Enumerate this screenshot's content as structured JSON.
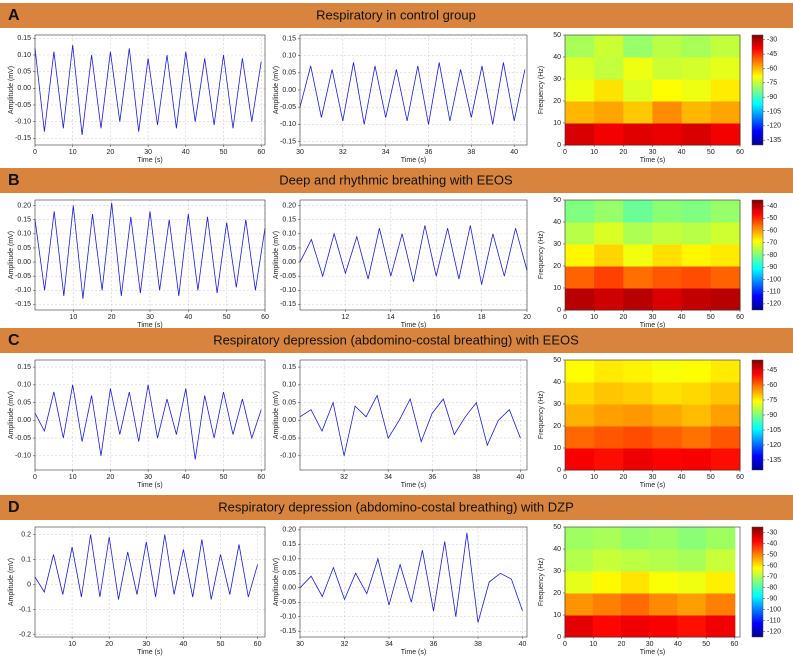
{
  "chart_data": [
    {
      "type": "line",
      "label": "A",
      "title": "Respiratory in control group",
      "xlabel": "Time (s)",
      "ylabel": "Amplitude (mV)",
      "color": "#1c1cd8",
      "grid": true,
      "xlim": [
        0,
        61
      ],
      "ylim": [
        -0.17,
        0.16
      ],
      "xticks": [
        0,
        10,
        20,
        30,
        40,
        50,
        60
      ],
      "yticks": [
        -0.15,
        {
          "value": -0.1,
          "label": "-0.10"
        },
        -0.05,
        {
          "value": 0,
          "label": "0.00"
        },
        0.05,
        {
          "value": 0.1,
          "label": "0.10"
        },
        0.15
      ],
      "x": [
        0,
        2.5,
        5,
        7.5,
        10,
        12.5,
        15,
        17.5,
        20,
        22.5,
        25,
        27.5,
        30,
        32.5,
        35,
        37.5,
        40,
        42.5,
        45,
        47.5,
        50,
        52.5,
        55,
        57.5,
        60
      ],
      "values": [
        0.12,
        -0.13,
        0.11,
        -0.12,
        0.13,
        -0.14,
        0.1,
        -0.12,
        0.11,
        -0.1,
        0.12,
        -0.13,
        0.09,
        -0.11,
        0.1,
        -0.12,
        0.11,
        -0.1,
        0.09,
        -0.11,
        0.1,
        -0.12,
        0.09,
        -0.1,
        0.08
      ]
    },
    {
      "type": "line",
      "xlabel": "Time (s)",
      "ylabel": "Amplitude (mV)",
      "color": "#1c1cd8",
      "grid": true,
      "xlim": [
        30,
        40.6
      ],
      "ylim": [
        -0.16,
        0.16
      ],
      "xticks": [
        30,
        32,
        34,
        36,
        38,
        40
      ],
      "yticks": [
        -0.15,
        {
          "value": -0.1,
          "label": "-0.10"
        },
        -0.05,
        {
          "value": 0,
          "label": "0.00"
        },
        0.05,
        {
          "value": 0.1,
          "label": "0.10"
        },
        0.15
      ],
      "x": [
        30,
        30.5,
        31,
        31.5,
        32,
        32.5,
        33,
        33.5,
        34,
        34.5,
        35,
        35.5,
        36,
        36.5,
        37,
        37.5,
        38,
        38.5,
        39,
        39.5,
        40,
        40.5
      ],
      "values": [
        -0.05,
        0.07,
        -0.08,
        0.06,
        -0.09,
        0.08,
        -0.1,
        0.07,
        -0.08,
        0.06,
        -0.09,
        0.07,
        -0.1,
        0.08,
        -0.09,
        0.06,
        -0.08,
        0.07,
        -0.1,
        0.08,
        -0.09,
        0.06
      ]
    },
    {
      "type": "heatmap",
      "xlabel": "Time (s)",
      "ylabel": "Frequency (Hz)",
      "colormap": "jet",
      "xlim": [
        0,
        60
      ],
      "ylim": [
        0,
        50
      ],
      "xticks": [
        0,
        10,
        20,
        30,
        40,
        50,
        60
      ],
      "yticks": [
        0,
        10,
        20,
        30,
        40,
        50
      ],
      "clim": [
        -140,
        -25
      ],
      "cticks": [
        -30,
        -45,
        -60,
        -75,
        -90,
        -105,
        -120,
        -135
      ],
      "x": [
        5,
        15,
        25,
        35,
        45,
        55
      ],
      "y": [
        5,
        15,
        25,
        35,
        45
      ],
      "z": [
        [
          -35,
          -38,
          -36,
          -37,
          -35,
          -38
        ],
        [
          -60,
          -58,
          -62,
          -55,
          -60,
          -58
        ],
        [
          -70,
          -65,
          -72,
          -68,
          -70,
          -66
        ],
        [
          -72,
          -75,
          -70,
          -74,
          -73,
          -71
        ],
        [
          -78,
          -74,
          -80,
          -76,
          -78,
          -75
        ]
      ]
    },
    {
      "type": "line",
      "label": "B",
      "title": "Deep and rhythmic breathing with EEOS",
      "xlabel": "Time (s)",
      "ylabel": "Amplitude (mV)",
      "color": "#1c1cd8",
      "grid": true,
      "xlim": [
        0,
        60
      ],
      "ylim": [
        -0.17,
        0.22
      ],
      "xticks": [
        10,
        20,
        30,
        40,
        50,
        60
      ],
      "yticks": [
        -0.15,
        {
          "value": -0.1,
          "label": "-0.10"
        },
        -0.05,
        {
          "value": 0,
          "label": "0.00"
        },
        0.05,
        {
          "value": 0.1,
          "label": "0.10"
        },
        0.15,
        {
          "value": 0.2,
          "label": "0.20"
        }
      ],
      "x": [
        0,
        2.5,
        5,
        7.5,
        10,
        12.5,
        15,
        17.5,
        20,
        22.5,
        25,
        27.5,
        30,
        32.5,
        35,
        37.5,
        40,
        42.5,
        45,
        47.5,
        50,
        52.5,
        55,
        57.5,
        60
      ],
      "values": [
        0.15,
        -0.1,
        0.18,
        -0.12,
        0.2,
        -0.13,
        0.17,
        -0.1,
        0.21,
        -0.12,
        0.16,
        -0.11,
        0.18,
        -0.1,
        0.15,
        -0.12,
        0.17,
        -0.1,
        0.16,
        -0.11,
        0.14,
        -0.09,
        0.15,
        -0.1,
        0.12
      ]
    },
    {
      "type": "line",
      "xlabel": "Time (s)",
      "ylabel": "Amplitude (mV)",
      "color": "#1c1cd8",
      "grid": true,
      "xlim": [
        10,
        20
      ],
      "ylim": [
        -0.17,
        0.22
      ],
      "xticks": [
        12,
        14,
        16,
        18,
        20
      ],
      "yticks": [
        -0.15,
        {
          "value": -0.1,
          "label": "-0.10"
        },
        -0.05,
        {
          "value": 0,
          "label": "0.00"
        },
        0.05,
        {
          "value": 0.1,
          "label": "0.10"
        },
        0.15,
        {
          "value": 0.2,
          "label": "0.20"
        }
      ],
      "x": [
        10,
        10.5,
        11,
        11.5,
        12,
        12.5,
        13,
        13.5,
        14,
        14.5,
        15,
        15.5,
        16,
        16.5,
        17,
        17.5,
        18,
        18.5,
        19,
        19.5,
        20
      ],
      "values": [
        0,
        0.08,
        -0.05,
        0.1,
        -0.04,
        0.09,
        -0.06,
        0.12,
        -0.05,
        0.1,
        -0.07,
        0.13,
        -0.05,
        0.12,
        -0.06,
        0.13,
        -0.08,
        0.1,
        -0.05,
        0.12,
        -0.03
      ]
    },
    {
      "type": "heatmap",
      "xlabel": "Time (s)",
      "ylabel": "Frequency (Hz)",
      "colormap": "jet",
      "xlim": [
        0,
        60
      ],
      "ylim": [
        0,
        50
      ],
      "xticks": [
        0,
        10,
        20,
        30,
        40,
        50,
        60
      ],
      "yticks": [
        0,
        10,
        20,
        30,
        40,
        50
      ],
      "clim": [
        -125,
        -35
      ],
      "cticks": [
        -40,
        -50,
        -60,
        -70,
        -80,
        -90,
        -100,
        -110,
        -120
      ],
      "x": [
        5,
        15,
        25,
        35,
        45,
        55
      ],
      "y": [
        5,
        15,
        25,
        35,
        45
      ],
      "z": [
        [
          -40,
          -42,
          -40,
          -43,
          -41,
          -40
        ],
        [
          -55,
          -52,
          -56,
          -54,
          -53,
          -55
        ],
        [
          -68,
          -65,
          -70,
          -66,
          -68,
          -67
        ],
        [
          -75,
          -72,
          -76,
          -74,
          -75,
          -73
        ],
        [
          -80,
          -78,
          -82,
          -79,
          -80,
          -78
        ]
      ]
    },
    {
      "type": "line",
      "label": "C",
      "title": "Respiratory depression (abdomino-costal breathing) with EEOS",
      "xlabel": "Time (s)",
      "ylabel": "Amplitude (mV)",
      "color": "#1c1cd8",
      "grid": true,
      "xlim": [
        0,
        61
      ],
      "ylim": [
        -0.14,
        0.17
      ],
      "xticks": [
        0,
        10,
        20,
        30,
        40,
        50,
        60
      ],
      "yticks": [
        {
          "value": -0.1,
          "label": "-0.10"
        },
        -0.05,
        {
          "value": 0,
          "label": "0.00"
        },
        0.05,
        {
          "value": 0.1,
          "label": "0.10"
        },
        0.15
      ],
      "x": [
        0,
        2.5,
        5,
        7.5,
        10,
        12.5,
        15,
        17.5,
        20,
        22.5,
        25,
        27.5,
        30,
        32.5,
        35,
        37.5,
        40,
        42.5,
        45,
        47.5,
        50,
        52.5,
        55,
        57.5,
        60
      ],
      "values": [
        0.02,
        -0.03,
        0.08,
        -0.05,
        0.1,
        -0.06,
        0.07,
        -0.1,
        0.09,
        -0.04,
        0.08,
        -0.06,
        0.1,
        -0.05,
        0.06,
        -0.04,
        0.09,
        -0.11,
        0.07,
        -0.05,
        0.08,
        -0.04,
        0.06,
        -0.05,
        0.03
      ]
    },
    {
      "type": "line",
      "xlabel": "Time (s)",
      "ylabel": "Amplitude (mV)",
      "color": "#1c1cd8",
      "grid": true,
      "xlim": [
        30,
        40.3
      ],
      "ylim": [
        -0.14,
        0.17
      ],
      "xticks": [
        32,
        34,
        36,
        38,
        40
      ],
      "yticks": [
        {
          "value": -0.1,
          "label": "-0.10"
        },
        -0.05,
        {
          "value": 0,
          "label": "0.00"
        },
        0.05,
        {
          "value": 0.1,
          "label": "0.10"
        },
        0.15
      ],
      "x": [
        30,
        30.5,
        31,
        31.5,
        32,
        32.5,
        33,
        33.5,
        34,
        34.5,
        35,
        35.5,
        36,
        36.5,
        37,
        37.5,
        38,
        38.5,
        39,
        39.5,
        40
      ],
      "values": [
        0.01,
        0.03,
        -0.03,
        0.05,
        -0.1,
        0.04,
        0.01,
        0.07,
        -0.05,
        0,
        0.06,
        -0.06,
        0.02,
        0.06,
        -0.04,
        0.01,
        0.05,
        -0.07,
        0,
        0.03,
        -0.05
      ]
    },
    {
      "type": "heatmap",
      "xlabel": "Time (s)",
      "ylabel": "Frequency (Hz)",
      "colormap": "jet",
      "xlim": [
        0,
        60
      ],
      "ylim": [
        0,
        50
      ],
      "xticks": [
        0,
        10,
        20,
        30,
        40,
        50,
        60
      ],
      "yticks": [
        0,
        10,
        20,
        30,
        40,
        50
      ],
      "clim": [
        -145,
        -35
      ],
      "cticks": [
        -45,
        -60,
        -75,
        -90,
        -105,
        -120,
        -135
      ],
      "x": [
        5,
        15,
        25,
        35,
        45,
        55
      ],
      "y": [
        5,
        15,
        25,
        35,
        45
      ],
      "z": [
        [
          -48,
          -50,
          -47,
          -49,
          -48,
          -50
        ],
        [
          -60,
          -58,
          -57,
          -59,
          -61,
          -58
        ],
        [
          -68,
          -66,
          -65,
          -67,
          -69,
          -66
        ],
        [
          -72,
          -70,
          -71,
          -73,
          -72,
          -70
        ],
        [
          -76,
          -74,
          -75,
          -77,
          -76,
          -74
        ]
      ]
    },
    {
      "type": "line",
      "label": "D",
      "title": "Respiratory depression (abdomino-costal breathing) with DZP",
      "xlabel": "Time (s)",
      "ylabel": "Amplitude (mV)",
      "color": "#1c1cd8",
      "grid": true,
      "xlim": [
        0,
        62
      ],
      "ylim": [
        -0.21,
        0.23
      ],
      "xticks": [
        10,
        20,
        30,
        40,
        50,
        60
      ],
      "yticks": [
        -0.2,
        -0.1,
        0,
        0.1,
        0.2
      ],
      "x": [
        0,
        2.5,
        5,
        7.5,
        10,
        12.5,
        15,
        17.5,
        20,
        22.5,
        25,
        27.5,
        30,
        32.5,
        35,
        37.5,
        40,
        42.5,
        45,
        47.5,
        50,
        52.5,
        55,
        57.5,
        60
      ],
      "values": [
        0.03,
        -0.03,
        0.12,
        -0.04,
        0.15,
        -0.05,
        0.2,
        -0.05,
        0.19,
        -0.06,
        0.13,
        -0.04,
        0.17,
        -0.05,
        0.2,
        -0.04,
        0.14,
        -0.05,
        0.18,
        -0.06,
        0.12,
        -0.04,
        0.16,
        -0.05,
        0.08
      ]
    },
    {
      "type": "line",
      "xlabel": "Time (s)",
      "ylabel": "Amplitude (mV)",
      "color": "#1c1cd8",
      "grid": true,
      "xlim": [
        30,
        40.2
      ],
      "ylim": [
        -0.17,
        0.21
      ],
      "xticks": [
        30,
        32,
        34,
        36,
        38,
        40
      ],
      "yticks": [
        -0.15,
        {
          "value": -0.1,
          "label": "-0.10"
        },
        -0.05,
        {
          "value": 0,
          "label": "0.00"
        },
        0.05,
        {
          "value": 0.1,
          "label": "0.10"
        },
        0.15,
        {
          "value": 0.2,
          "label": "0.20"
        }
      ],
      "x": [
        30,
        30.5,
        31,
        31.5,
        32,
        32.5,
        33,
        33.5,
        34,
        34.5,
        35,
        35.5,
        36,
        36.5,
        37,
        37.5,
        38,
        38.5,
        39,
        39.5,
        40
      ],
      "values": [
        0,
        0.04,
        -0.03,
        0.07,
        -0.04,
        0.05,
        -0.02,
        0.1,
        -0.06,
        0.08,
        -0.05,
        0.13,
        -0.08,
        0.16,
        -0.1,
        0.19,
        -0.12,
        0.02,
        0.05,
        0.03,
        -0.08
      ]
    },
    {
      "type": "heatmap",
      "xlabel": "Time (s)",
      "ylabel": "Frequency (Hz)",
      "colormap": "jet",
      "xlim": [
        0,
        62
      ],
      "ylim": [
        0,
        50
      ],
      "xticks": [
        0,
        10,
        20,
        30,
        40,
        50,
        60
      ],
      "yticks": [
        0,
        10,
        20,
        30,
        40,
        50
      ],
      "clim": [
        -125,
        -25
      ],
      "cticks": [
        -30,
        -40,
        -50,
        -60,
        -70,
        -80,
        -90,
        -100,
        -110,
        -120
      ],
      "x": [
        5,
        15,
        25,
        35,
        45,
        55
      ],
      "y": [
        5,
        15,
        25,
        35,
        45
      ],
      "z": [
        [
          -35,
          -38,
          -36,
          -37,
          -39,
          -36
        ],
        [
          -52,
          -50,
          -48,
          -51,
          -53,
          -50
        ],
        [
          -65,
          -62,
          -60,
          -63,
          -64,
          -61
        ],
        [
          -70,
          -68,
          -69,
          -70,
          -71,
          -68
        ],
        [
          -72,
          -71,
          -73,
          -72,
          -74,
          -72
        ]
      ]
    }
  ]
}
